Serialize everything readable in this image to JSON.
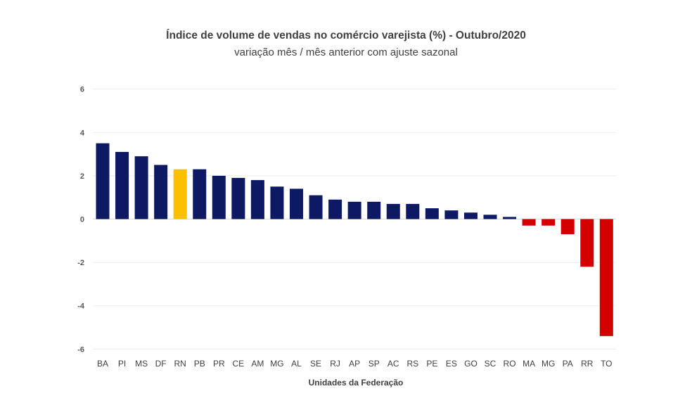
{
  "chart_data": {
    "type": "bar",
    "title": "Índice de volume de vendas no comércio varejista (%) - Outubro/2020",
    "subtitle": "variação mês / mês anterior com ajuste sazonal",
    "xlabel": "Unidades da Federação",
    "ylabel": "",
    "ylim": [
      -6,
      6
    ],
    "yticks": [
      6,
      4,
      2,
      0,
      -2,
      -4,
      -6
    ],
    "grid": true,
    "categories": [
      "BA",
      "PI",
      "MS",
      "DF",
      "RN",
      "PB",
      "PR",
      "CE",
      "AM",
      "MG",
      "AL",
      "SE",
      "RJ",
      "AP",
      "SP",
      "AC",
      "RS",
      "PE",
      "ES",
      "GO",
      "SC",
      "RO",
      "MA",
      "MG",
      "PA",
      "RR",
      "TO"
    ],
    "values": [
      3.5,
      3.1,
      2.9,
      2.5,
      2.3,
      2.3,
      2.0,
      1.9,
      1.8,
      1.5,
      1.4,
      1.1,
      0.9,
      0.8,
      0.8,
      0.7,
      0.7,
      0.5,
      0.4,
      0.3,
      0.2,
      0.1,
      -0.3,
      -0.3,
      -0.7,
      -2.2,
      -5.4
    ],
    "highlight_category": "RN",
    "colors": {
      "positive": "#0d1a63",
      "highlight": "#fcc000",
      "negative": "#d40000",
      "grid": "#ececec"
    }
  }
}
